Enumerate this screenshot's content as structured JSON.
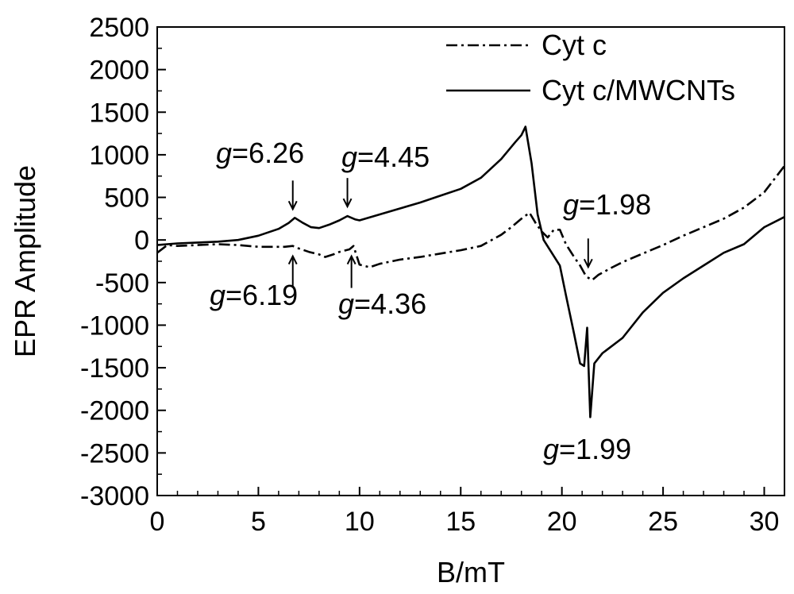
{
  "chart_data": {
    "type": "line",
    "xlabel": "B/mT",
    "ylabel": "EPR Amplitude",
    "xlim": [
      0,
      31
    ],
    "ylim": [
      -3000,
      2500
    ],
    "x_ticks": [
      0,
      5,
      10,
      15,
      20,
      25,
      30
    ],
    "x_tick_labels": [
      "0",
      "5",
      "10",
      "15",
      "20",
      "25",
      "30"
    ],
    "y_ticks": [
      2500,
      2000,
      1500,
      1000,
      500,
      0,
      -500,
      -1000,
      -1500,
      -2000,
      -2500,
      -3000
    ],
    "y_tick_labels": [
      "2500",
      "2000",
      "1500",
      "1000",
      "500",
      "0",
      "-500",
      "-1000",
      "-1500",
      "-2000",
      "-2500",
      "-3000"
    ],
    "grid": false,
    "legend_position": "top-right",
    "series": [
      {
        "name": "Cyt c",
        "style": "dash-dot",
        "color": "#000000",
        "points": [
          [
            0,
            -150
          ],
          [
            0.5,
            -60
          ],
          [
            1,
            -70
          ],
          [
            2,
            -60
          ],
          [
            3,
            -50
          ],
          [
            4,
            -60
          ],
          [
            5,
            -80
          ],
          [
            6,
            -80
          ],
          [
            6.3,
            -80
          ],
          [
            6.7,
            -70
          ],
          [
            7,
            -100
          ],
          [
            7.5,
            -140
          ],
          [
            8,
            -170
          ],
          [
            8.3,
            -200
          ],
          [
            8.7,
            -170
          ],
          [
            9,
            -140
          ],
          [
            9.5,
            -110
          ],
          [
            9.7,
            -70
          ],
          [
            10,
            -290
          ],
          [
            10.5,
            -320
          ],
          [
            11,
            -280
          ],
          [
            12,
            -230
          ],
          [
            13,
            -200
          ],
          [
            14,
            -160
          ],
          [
            15,
            -120
          ],
          [
            16,
            -70
          ],
          [
            17,
            60
          ],
          [
            17.5,
            150
          ],
          [
            18,
            250
          ],
          [
            18.4,
            320
          ],
          [
            18.7,
            200
          ],
          [
            19,
            100
          ],
          [
            19.3,
            30
          ],
          [
            19.6,
            120
          ],
          [
            19.9,
            120
          ],
          [
            20.2,
            -50
          ],
          [
            20.6,
            -200
          ],
          [
            20.9,
            -300
          ],
          [
            21.2,
            -430
          ],
          [
            21.5,
            -470
          ],
          [
            21.8,
            -410
          ],
          [
            22.5,
            -320
          ],
          [
            23,
            -260
          ],
          [
            24,
            -160
          ],
          [
            25,
            -60
          ],
          [
            26,
            50
          ],
          [
            27,
            150
          ],
          [
            28,
            250
          ],
          [
            29,
            380
          ],
          [
            30,
            560
          ],
          [
            31,
            870
          ]
        ]
      },
      {
        "name": "Cyt c/MWCNTs",
        "style": "solid",
        "color": "#000000",
        "points": [
          [
            0,
            -60
          ],
          [
            1,
            -40
          ],
          [
            2,
            -30
          ],
          [
            3,
            -20
          ],
          [
            4,
            0
          ],
          [
            5,
            50
          ],
          [
            6,
            130
          ],
          [
            6.5,
            200
          ],
          [
            6.8,
            260
          ],
          [
            7.2,
            200
          ],
          [
            7.6,
            150
          ],
          [
            8,
            140
          ],
          [
            8.5,
            180
          ],
          [
            9,
            230
          ],
          [
            9.4,
            280
          ],
          [
            9.8,
            240
          ],
          [
            10,
            230
          ],
          [
            11,
            300
          ],
          [
            12,
            370
          ],
          [
            13,
            440
          ],
          [
            14,
            520
          ],
          [
            15,
            600
          ],
          [
            16,
            730
          ],
          [
            17,
            950
          ],
          [
            17.7,
            1150
          ],
          [
            18,
            1230
          ],
          [
            18.2,
            1330
          ],
          [
            18.5,
            900
          ],
          [
            18.8,
            300
          ],
          [
            19.1,
            0
          ],
          [
            19.5,
            -150
          ],
          [
            19.9,
            -300
          ],
          [
            20.2,
            -650
          ],
          [
            20.6,
            -1100
          ],
          [
            20.9,
            -1450
          ],
          [
            21.1,
            -1480
          ],
          [
            21.25,
            -1030
          ],
          [
            21.4,
            -2080
          ],
          [
            21.6,
            -1450
          ],
          [
            22,
            -1330
          ],
          [
            23,
            -1150
          ],
          [
            24,
            -850
          ],
          [
            25,
            -620
          ],
          [
            26,
            -450
          ],
          [
            27,
            -300
          ],
          [
            28,
            -150
          ],
          [
            29,
            -50
          ],
          [
            30,
            150
          ],
          [
            31,
            270
          ]
        ]
      }
    ],
    "annotations": [
      {
        "prefix": "g",
        "text": "=6.26",
        "x": 6.7,
        "y": 250,
        "arrow": "down"
      },
      {
        "prefix": "g",
        "text": "=4.45",
        "x": 9.4,
        "y": 280,
        "arrow": "down"
      },
      {
        "prefix": "g",
        "text": "=6.19",
        "x": 6.7,
        "y": -60,
        "arrow": "up"
      },
      {
        "prefix": "g",
        "text": "=4.36",
        "x": 9.6,
        "y": -60,
        "arrow": "up"
      },
      {
        "prefix": "g",
        "text": "=1.98",
        "x": 21.3,
        "y": -430,
        "arrow": "down"
      },
      {
        "prefix": "g",
        "text": "=1.99",
        "x": 21.4,
        "y": -2080,
        "arrow": "none"
      }
    ]
  }
}
